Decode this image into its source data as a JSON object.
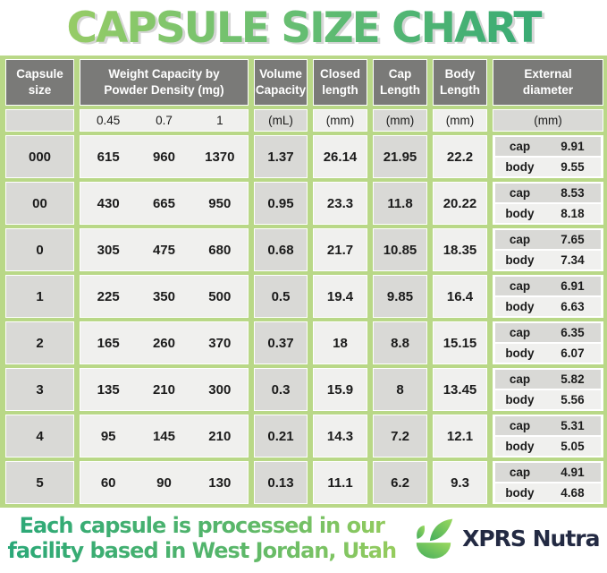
{
  "title": "CAPSULE SIZE CHART",
  "colors": {
    "grid_green": "#b9d887",
    "header_gray": "#7a7a78",
    "cell_gray": "#d9d9d6",
    "cell_light": "#f0f0ee",
    "title_gradient_start": "#a6d063",
    "title_gradient_end": "#2ba575",
    "footer_gradient_start": "#2aa878",
    "footer_gradient_end": "#96cc5e",
    "brand_navy": "#232a43"
  },
  "table": {
    "header": {
      "capsule_size": "Capsule size",
      "weight": [
        "Weight Capacity by",
        "Powder Density (mg)"
      ],
      "volume": [
        "Volume",
        "Capacity"
      ],
      "closed": [
        "Closed",
        "length"
      ],
      "cap": [
        "Cap",
        "Length"
      ],
      "body": [
        "Body",
        "Length"
      ],
      "external": [
        "External",
        "diameter"
      ]
    },
    "subheader": {
      "densities": [
        "0.45",
        "0.7",
        "1"
      ],
      "volume_unit": "(mL)",
      "closed_unit": "(mm)",
      "cap_unit": "(mm)",
      "body_unit": "(mm)",
      "external_unit": "(mm)"
    },
    "ext_labels": {
      "cap": "cap",
      "body": "body"
    },
    "rows": [
      {
        "size": "000",
        "weights": [
          "615",
          "960",
          "1370"
        ],
        "volume": "1.37",
        "closed": "26.14",
        "cap_len": "21.95",
        "body_len": "22.2",
        "ext_cap": "9.91",
        "ext_body": "9.55"
      },
      {
        "size": "00",
        "weights": [
          "430",
          "665",
          "950"
        ],
        "volume": "0.95",
        "closed": "23.3",
        "cap_len": "11.8",
        "body_len": "20.22",
        "ext_cap": "8.53",
        "ext_body": "8.18"
      },
      {
        "size": "0",
        "weights": [
          "305",
          "475",
          "680"
        ],
        "volume": "0.68",
        "closed": "21.7",
        "cap_len": "10.85",
        "body_len": "18.35",
        "ext_cap": "7.65",
        "ext_body": "7.34"
      },
      {
        "size": "1",
        "weights": [
          "225",
          "350",
          "500"
        ],
        "volume": "0.5",
        "closed": "19.4",
        "cap_len": "9.85",
        "body_len": "16.4",
        "ext_cap": "6.91",
        "ext_body": "6.63"
      },
      {
        "size": "2",
        "weights": [
          "165",
          "260",
          "370"
        ],
        "volume": "0.37",
        "closed": "18",
        "cap_len": "8.8",
        "body_len": "15.15",
        "ext_cap": "6.35",
        "ext_body": "6.07"
      },
      {
        "size": "3",
        "weights": [
          "135",
          "210",
          "300"
        ],
        "volume": "0.3",
        "closed": "15.9",
        "cap_len": "8",
        "body_len": "13.45",
        "ext_cap": "5.82",
        "ext_body": "5.56"
      },
      {
        "size": "4",
        "weights": [
          "95",
          "145",
          "210"
        ],
        "volume": "0.21",
        "closed": "14.3",
        "cap_len": "7.2",
        "body_len": "12.1",
        "ext_cap": "5.31",
        "ext_body": "5.05"
      },
      {
        "size": "5",
        "weights": [
          "60",
          "90",
          "130"
        ],
        "volume": "0.13",
        "closed": "11.1",
        "cap_len": "6.2",
        "body_len": "9.3",
        "ext_cap": "4.91",
        "ext_body": "4.68"
      }
    ]
  },
  "footer": {
    "note_line1": "Each capsule is processed in our",
    "note_line2": "facility based in West Jordan, Utah",
    "brand": "XPRS Nutra"
  },
  "chart_data": {
    "type": "table",
    "title": "CAPSULE SIZE CHART",
    "columns": [
      "Capsule size",
      "Weight Capacity by Powder Density 0.45 (mg)",
      "Weight Capacity by Powder Density 0.7 (mg)",
      "Weight Capacity by Powder Density 1 (mg)",
      "Volume Capacity (mL)",
      "Closed length (mm)",
      "Cap Length (mm)",
      "Body Length (mm)",
      "External diameter cap (mm)",
      "External diameter body (mm)"
    ],
    "rows": [
      [
        "000",
        615,
        960,
        1370,
        1.37,
        26.14,
        21.95,
        22.2,
        9.91,
        9.55
      ],
      [
        "00",
        430,
        665,
        950,
        0.95,
        23.3,
        11.8,
        20.22,
        8.53,
        8.18
      ],
      [
        "0",
        305,
        475,
        680,
        0.68,
        21.7,
        10.85,
        18.35,
        7.65,
        7.34
      ],
      [
        "1",
        225,
        350,
        500,
        0.5,
        19.4,
        9.85,
        16.4,
        6.91,
        6.63
      ],
      [
        "2",
        165,
        260,
        370,
        0.37,
        18,
        8.8,
        15.15,
        6.35,
        6.07
      ],
      [
        "3",
        135,
        210,
        300,
        0.3,
        15.9,
        8,
        13.45,
        5.82,
        5.56
      ],
      [
        "4",
        95,
        145,
        210,
        0.21,
        14.3,
        7.2,
        12.1,
        5.31,
        5.05
      ],
      [
        "5",
        60,
        90,
        130,
        0.13,
        11.1,
        6.2,
        9.3,
        4.91,
        4.68
      ]
    ]
  }
}
